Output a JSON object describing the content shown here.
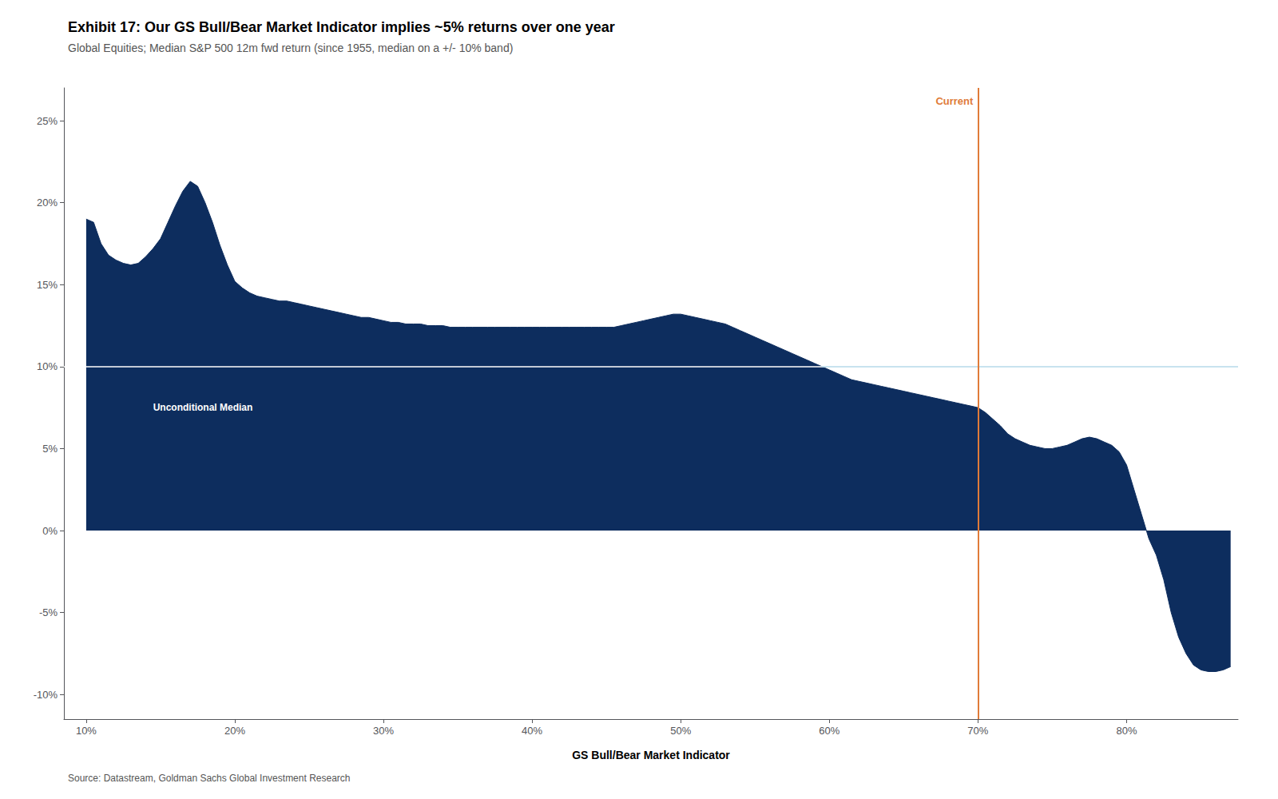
{
  "chart_data": {
    "type": "area",
    "title": "Exhibit 17: Our GS Bull/Bear Market Indicator implies ~5% returns over one year",
    "subtitle": "Global Equities; Median S&P 500 12m fwd return (since 1955, median on a +/- 10% band)",
    "source": "Source: Datastream, Goldman Sachs Global Investment Research",
    "xlabel": "GS Bull/Bear Market Indicator",
    "color": "#0d2d5e",
    "grid": false,
    "xlim": [
      0.085,
      0.875
    ],
    "ylim": [
      -0.115,
      0.27
    ],
    "xticks": [
      {
        "value": 0.1,
        "label": "10%"
      },
      {
        "value": 0.2,
        "label": "20%"
      },
      {
        "value": 0.3,
        "label": "30%"
      },
      {
        "value": 0.4,
        "label": "40%"
      },
      {
        "value": 0.5,
        "label": "50%"
      },
      {
        "value": 0.6,
        "label": "60%"
      },
      {
        "value": 0.7,
        "label": "70%"
      },
      {
        "value": 0.8,
        "label": "80%"
      }
    ],
    "yticks": [
      {
        "value": -0.1,
        "label": "-10%"
      },
      {
        "value": -0.05,
        "label": "-5%"
      },
      {
        "value": 0.0,
        "label": "0%"
      },
      {
        "value": 0.05,
        "label": "5%"
      },
      {
        "value": 0.1,
        "label": "10%"
      },
      {
        "value": 0.15,
        "label": "15%"
      },
      {
        "value": 0.2,
        "label": "20%"
      },
      {
        "value": 0.25,
        "label": "25%"
      }
    ],
    "reference_lines": [
      {
        "axis": "y",
        "value": 0.1,
        "color": "#ffffff"
      },
      {
        "axis": "y",
        "value": 0.1,
        "from": 0.595,
        "color": "#aed6e8"
      },
      {
        "axis": "x",
        "value": 0.7,
        "color": "#e07b39",
        "label": "Current"
      }
    ],
    "annotations": [
      {
        "text": "Unconditional Median",
        "x": 0.145,
        "y": 0.075,
        "color": "#ffffff"
      }
    ],
    "x": [
      0.1,
      0.105,
      0.11,
      0.115,
      0.12,
      0.125,
      0.13,
      0.135,
      0.14,
      0.145,
      0.15,
      0.155,
      0.16,
      0.165,
      0.17,
      0.175,
      0.18,
      0.185,
      0.19,
      0.195,
      0.2,
      0.205,
      0.21,
      0.215,
      0.22,
      0.225,
      0.23,
      0.235,
      0.24,
      0.245,
      0.25,
      0.255,
      0.26,
      0.265,
      0.27,
      0.275,
      0.28,
      0.285,
      0.29,
      0.295,
      0.3,
      0.305,
      0.31,
      0.315,
      0.32,
      0.325,
      0.33,
      0.335,
      0.34,
      0.345,
      0.35,
      0.355,
      0.36,
      0.365,
      0.37,
      0.375,
      0.38,
      0.385,
      0.39,
      0.395,
      0.4,
      0.405,
      0.41,
      0.415,
      0.42,
      0.425,
      0.43,
      0.435,
      0.44,
      0.445,
      0.45,
      0.455,
      0.46,
      0.465,
      0.47,
      0.475,
      0.48,
      0.485,
      0.49,
      0.495,
      0.5,
      0.505,
      0.51,
      0.515,
      0.52,
      0.525,
      0.53,
      0.535,
      0.54,
      0.545,
      0.55,
      0.555,
      0.56,
      0.565,
      0.57,
      0.575,
      0.58,
      0.585,
      0.59,
      0.595,
      0.6,
      0.605,
      0.61,
      0.615,
      0.62,
      0.625,
      0.63,
      0.635,
      0.64,
      0.645,
      0.65,
      0.655,
      0.66,
      0.665,
      0.67,
      0.675,
      0.68,
      0.685,
      0.69,
      0.695,
      0.7,
      0.705,
      0.71,
      0.715,
      0.72,
      0.725,
      0.73,
      0.735,
      0.74,
      0.745,
      0.75,
      0.755,
      0.76,
      0.765,
      0.77,
      0.775,
      0.78,
      0.785,
      0.79,
      0.795,
      0.8,
      0.805,
      0.81,
      0.815,
      0.82,
      0.825,
      0.83,
      0.835,
      0.84,
      0.845,
      0.85,
      0.855,
      0.86,
      0.865,
      0.87
    ],
    "values": [
      0.19,
      0.188,
      0.175,
      0.168,
      0.165,
      0.163,
      0.162,
      0.163,
      0.167,
      0.172,
      0.178,
      0.188,
      0.198,
      0.207,
      0.213,
      0.21,
      0.2,
      0.188,
      0.174,
      0.162,
      0.152,
      0.148,
      0.145,
      0.143,
      0.142,
      0.141,
      0.14,
      0.14,
      0.139,
      0.138,
      0.137,
      0.136,
      0.135,
      0.134,
      0.133,
      0.132,
      0.131,
      0.13,
      0.13,
      0.129,
      0.128,
      0.127,
      0.127,
      0.126,
      0.126,
      0.126,
      0.125,
      0.125,
      0.125,
      0.124,
      0.124,
      0.124,
      0.124,
      0.124,
      0.124,
      0.124,
      0.124,
      0.124,
      0.124,
      0.124,
      0.124,
      0.124,
      0.124,
      0.124,
      0.124,
      0.124,
      0.124,
      0.124,
      0.124,
      0.124,
      0.124,
      0.124,
      0.125,
      0.126,
      0.127,
      0.128,
      0.129,
      0.13,
      0.131,
      0.132,
      0.132,
      0.131,
      0.13,
      0.129,
      0.128,
      0.127,
      0.126,
      0.124,
      0.122,
      0.12,
      0.118,
      0.116,
      0.114,
      0.112,
      0.11,
      0.108,
      0.106,
      0.104,
      0.102,
      0.1,
      0.098,
      0.096,
      0.094,
      0.092,
      0.091,
      0.09,
      0.089,
      0.088,
      0.087,
      0.086,
      0.085,
      0.084,
      0.083,
      0.082,
      0.081,
      0.08,
      0.079,
      0.078,
      0.077,
      0.076,
      0.075,
      0.072,
      0.068,
      0.064,
      0.059,
      0.056,
      0.054,
      0.052,
      0.051,
      0.05,
      0.05,
      0.051,
      0.052,
      0.054,
      0.056,
      0.057,
      0.056,
      0.054,
      0.052,
      0.048,
      0.04,
      0.025,
      0.01,
      -0.005,
      -0.015,
      -0.03,
      -0.05,
      -0.065,
      -0.075,
      -0.082,
      -0.085,
      -0.086,
      -0.086,
      -0.085,
      -0.083
    ]
  }
}
